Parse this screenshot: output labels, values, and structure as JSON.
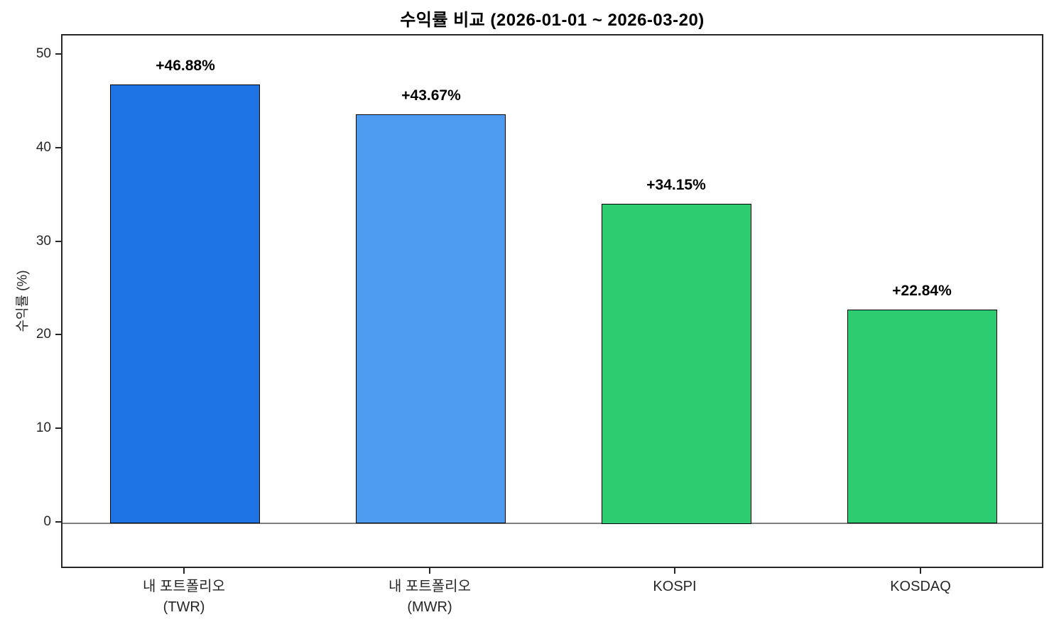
{
  "chart_data": {
    "type": "bar",
    "title": "수익률 비교 (2026-01-01 ~ 2026-03-20)",
    "xlabel": "",
    "ylabel": "수익률 (%)",
    "categories": [
      "내 포트폴리오\n(TWR)",
      "내 포트폴리오\n(MWR)",
      "KOSPI",
      "KOSDAQ"
    ],
    "values": [
      46.88,
      43.67,
      34.15,
      22.84
    ],
    "bar_labels": [
      "+46.88%",
      "+43.67%",
      "+34.15%",
      "+22.84%"
    ],
    "bar_colors": [
      "#1E74E5",
      "#4D9BF0",
      "#2ECC71",
      "#2ECC71"
    ],
    "bar_edge_color": "#000000",
    "yticks": [
      0,
      10,
      20,
      30,
      40,
      50
    ],
    "ylim": [
      -4.9,
      52.1
    ],
    "zero_line": {
      "y": 0,
      "color": "#808080"
    },
    "grid": false,
    "legend": null,
    "background_color": "#ffffff",
    "spine_color": "#262626"
  }
}
